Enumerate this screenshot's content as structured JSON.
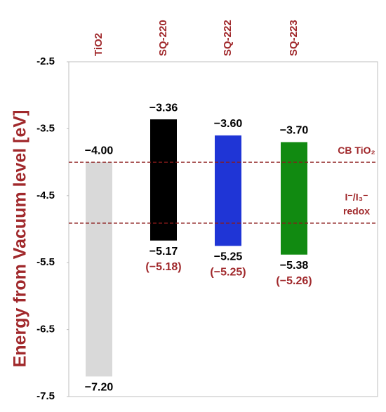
{
  "chart_data": {
    "type": "floating-bar",
    "y_label": "Energy from Vacuum level [eV]",
    "categories": [
      "TiO2",
      "SQ-220",
      "SQ-222",
      "SQ-223"
    ],
    "colors": [
      "#d9d9d9",
      "#000000",
      "#1f35d6",
      "#118a11"
    ],
    "tops": {
      "values": [
        -4.0,
        -3.36,
        -3.6,
        -3.7
      ],
      "value_labels": [
        "−4.00",
        "−3.36",
        "−3.60",
        "−3.70"
      ]
    },
    "bottoms": {
      "values": [
        -7.2,
        -5.17,
        -5.25,
        -5.38
      ],
      "value_labels": [
        "−7.20",
        "−5.17",
        "−5.25",
        "−5.38"
      ]
    },
    "bottoms_alt": {
      "values": [
        null,
        -5.18,
        -5.25,
        -5.26
      ],
      "value_labels": [
        null,
        "(−5.18)",
        "(−5.25)",
        "(−5.26)"
      ]
    },
    "reference_lines": [
      {
        "value": -4.0,
        "label": [
          "CB TiO₂"
        ]
      },
      {
        "value": -4.91,
        "label": [
          "I⁻/I₃⁻",
          "redox"
        ]
      }
    ],
    "ylim": [
      -7.5,
      -2.5
    ],
    "yticks": [
      -2.5,
      -3.5,
      -4.5,
      -5.5,
      -6.5,
      -7.5
    ]
  }
}
